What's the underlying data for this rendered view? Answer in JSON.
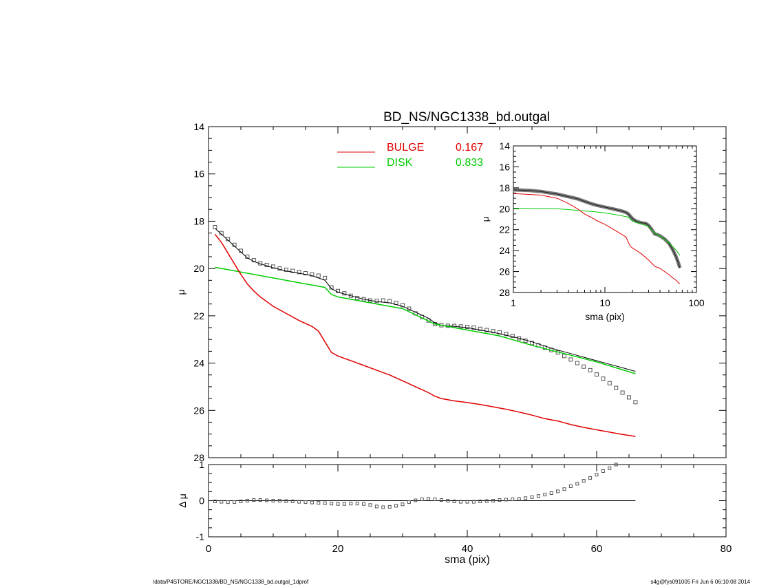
{
  "title": "BD_NS/NGC1338_bd.outgal",
  "footer_left": "/data/P4STORE/NGC1338/BD_NS/NGC1338_bd.outgal_1dprof",
  "footer_right": "s4g@fys091005  Fri Jun  6 06:10:08 2014",
  "colors": {
    "bulge": "#e00000",
    "disk": "#00cc00",
    "data": "#555555",
    "total": "#000000"
  },
  "chart_data": [
    {
      "id": "main",
      "type": "line",
      "title": "BD_NS/NGC1338_bd.outgal",
      "xlabel": "",
      "ylabel": "μ",
      "xlim": [
        0,
        80
      ],
      "ylim": [
        14,
        28
      ],
      "y_inverted": true,
      "y_ticks": [
        "14",
        "16",
        "18",
        "20",
        "22",
        "24",
        "26",
        "28"
      ],
      "legend": {
        "placement": "top-center",
        "entries": [
          {
            "name": "BULGE",
            "value": "0.167",
            "color": "#e00000"
          },
          {
            "name": "DISK",
            "value": "0.833",
            "color": "#00cc00"
          }
        ]
      },
      "series": [
        {
          "key": "data",
          "style": "squares",
          "x": [
            1,
            2,
            3,
            4,
            5,
            6,
            7,
            8,
            9,
            10,
            11,
            12,
            13,
            14,
            15,
            16,
            17,
            18,
            19,
            20,
            21,
            22,
            23,
            24,
            25,
            26,
            27,
            28,
            29,
            30,
            31,
            32,
            33,
            34,
            35,
            36,
            37,
            38,
            39,
            40,
            41,
            42,
            43,
            44,
            45,
            46,
            47,
            48,
            49,
            50,
            51,
            52,
            53,
            54,
            55,
            56,
            57,
            58,
            59,
            60,
            61,
            62,
            63,
            64,
            65,
            66
          ],
          "y": [
            18.25,
            18.5,
            18.75,
            19.0,
            19.25,
            19.5,
            19.65,
            19.78,
            19.85,
            19.92,
            20.0,
            20.05,
            20.1,
            20.15,
            20.2,
            20.25,
            20.3,
            20.4,
            20.8,
            20.95,
            21.05,
            21.15,
            21.25,
            21.3,
            21.35,
            21.37,
            21.35,
            21.38,
            21.45,
            21.55,
            21.7,
            21.9,
            22.05,
            22.2,
            22.35,
            22.4,
            22.42,
            22.43,
            22.45,
            22.47,
            22.5,
            22.55,
            22.6,
            22.65,
            22.7,
            22.77,
            22.85,
            22.95,
            23.05,
            23.15,
            23.25,
            23.35,
            23.45,
            23.55,
            23.7,
            23.85,
            24.0,
            24.15,
            24.3,
            24.48,
            24.66,
            24.85,
            25.05,
            25.25,
            25.45,
            25.65
          ]
        },
        {
          "key": "total",
          "color": "#000000",
          "x": [
            1,
            2,
            3,
            4,
            5,
            6,
            7,
            8,
            10,
            12,
            14,
            16,
            17,
            18,
            19,
            20,
            22,
            24,
            26,
            28,
            30,
            32,
            34,
            35,
            36,
            38,
            40,
            42,
            44,
            46,
            48,
            50,
            52,
            54,
            56,
            58,
            60,
            62,
            64,
            66
          ],
          "y": [
            18.3,
            18.55,
            18.8,
            19.05,
            19.3,
            19.55,
            19.7,
            19.8,
            19.97,
            20.1,
            20.2,
            20.3,
            20.4,
            20.5,
            20.85,
            21.0,
            21.15,
            21.3,
            21.4,
            21.45,
            21.6,
            21.85,
            22.1,
            22.3,
            22.4,
            22.45,
            22.5,
            22.6,
            22.7,
            22.82,
            22.95,
            23.1,
            23.28,
            23.45,
            23.6,
            23.75,
            23.9,
            24.05,
            24.2,
            24.35
          ]
        },
        {
          "key": "disk",
          "color": "#00cc00",
          "x": [
            1,
            5,
            10,
            15,
            18,
            19,
            20,
            25,
            30,
            35,
            40,
            45,
            50,
            55,
            60,
            66
          ],
          "y": [
            19.95,
            20.15,
            20.4,
            20.65,
            20.8,
            21.1,
            21.2,
            21.45,
            21.7,
            22.35,
            22.6,
            22.85,
            23.25,
            23.6,
            23.95,
            24.45
          ]
        },
        {
          "key": "bulge",
          "color": "#e00000",
          "x": [
            1,
            2,
            3,
            4,
            5,
            6,
            7,
            8,
            9,
            10,
            12,
            14,
            16,
            17,
            18,
            19,
            20,
            22,
            24,
            26,
            28,
            30,
            32,
            34,
            35,
            36,
            38,
            40,
            42,
            44,
            46,
            48,
            50,
            52,
            54,
            56,
            58,
            60,
            62,
            64,
            66
          ],
          "y": [
            18.55,
            18.9,
            19.35,
            19.8,
            20.25,
            20.65,
            20.95,
            21.2,
            21.4,
            21.6,
            21.9,
            22.2,
            22.45,
            22.65,
            23.1,
            23.55,
            23.7,
            23.9,
            24.1,
            24.3,
            24.5,
            24.75,
            25.0,
            25.25,
            25.4,
            25.5,
            25.6,
            25.67,
            25.75,
            25.85,
            25.95,
            26.07,
            26.2,
            26.35,
            26.45,
            26.6,
            26.72,
            26.82,
            26.92,
            27.02,
            27.1
          ]
        }
      ]
    },
    {
      "id": "residual",
      "type": "scatter",
      "xlabel": "sma (pix)",
      "ylabel": "Δ μ",
      "xlim": [
        0,
        80
      ],
      "ylim": [
        -1,
        1
      ],
      "x_ticks": [
        "0",
        "20",
        "40",
        "60",
        "80"
      ],
      "y_ticks": [
        "1",
        "0",
        "-1"
      ],
      "reference_line": 0,
      "series": [
        {
          "key": "residual",
          "x": [
            1,
            2,
            3,
            4,
            5,
            6,
            7,
            8,
            9,
            10,
            11,
            12,
            13,
            14,
            15,
            16,
            17,
            18,
            19,
            20,
            21,
            22,
            23,
            24,
            25,
            26,
            27,
            28,
            29,
            30,
            31,
            32,
            33,
            34,
            35,
            36,
            37,
            38,
            39,
            40,
            41,
            42,
            43,
            44,
            45,
            46,
            47,
            48,
            49,
            50,
            51,
            52,
            53,
            54,
            55,
            56,
            57,
            58,
            59,
            60,
            61,
            62,
            63
          ],
          "y": [
            -0.02,
            -0.03,
            -0.04,
            -0.04,
            -0.02,
            0.0,
            0.02,
            0.02,
            0.01,
            0.0,
            0.0,
            -0.01,
            -0.02,
            -0.03,
            -0.04,
            -0.05,
            -0.06,
            -0.07,
            -0.08,
            -0.09,
            -0.09,
            -0.08,
            -0.08,
            -0.09,
            -0.12,
            -0.16,
            -0.18,
            -0.17,
            -0.14,
            -0.1,
            -0.04,
            0.01,
            0.04,
            0.05,
            0.04,
            0.02,
            0.0,
            -0.02,
            -0.03,
            -0.03,
            -0.03,
            -0.02,
            -0.01,
            0.0,
            0.02,
            0.03,
            0.04,
            0.05,
            0.07,
            0.1,
            0.13,
            0.17,
            0.21,
            0.26,
            0.32,
            0.4,
            0.47,
            0.55,
            0.63,
            0.72,
            0.82,
            0.9,
            1.0
          ]
        }
      ]
    },
    {
      "id": "inset",
      "type": "line",
      "xlabel": "sma (pix)",
      "ylabel": "μ",
      "xscale": "log",
      "xlim": [
        1,
        100
      ],
      "ylim": [
        14,
        28
      ],
      "y_inverted": true,
      "x_ticks": [
        "1",
        "10",
        "100"
      ],
      "y_ticks": [
        "14",
        "16",
        "18",
        "20",
        "22",
        "24",
        "26",
        "28"
      ],
      "series": [
        {
          "key": "data",
          "x": [
            1,
            1.5,
            2,
            3,
            4,
            5,
            6,
            7,
            8,
            10,
            12,
            15,
            17,
            18,
            20,
            22,
            25,
            28,
            30,
            32,
            35,
            38,
            40,
            45,
            50,
            55,
            60,
            63,
            66
          ],
          "y": [
            18.2,
            18.25,
            18.35,
            18.6,
            18.85,
            19.05,
            19.3,
            19.5,
            19.65,
            19.85,
            20.0,
            20.2,
            20.35,
            20.5,
            20.95,
            21.2,
            21.35,
            21.4,
            21.6,
            21.9,
            22.4,
            22.5,
            22.6,
            22.9,
            23.3,
            23.9,
            24.6,
            25.1,
            25.65
          ]
        },
        {
          "key": "disk",
          "color": "#00cc00",
          "x": [
            1,
            3,
            5,
            8,
            10,
            15,
            18,
            20,
            25,
            30,
            35,
            40,
            50,
            60,
            66
          ],
          "y": [
            19.95,
            20.0,
            20.15,
            20.3,
            20.4,
            20.65,
            20.8,
            21.2,
            21.45,
            21.7,
            22.35,
            22.6,
            23.25,
            23.95,
            24.45
          ]
        },
        {
          "key": "bulge",
          "color": "#e00000",
          "x": [
            1,
            2,
            3,
            4,
            5,
            6,
            7,
            8,
            10,
            12,
            15,
            17,
            18,
            19,
            20,
            25,
            30,
            35,
            40,
            50,
            60,
            66
          ],
          "y": [
            18.55,
            18.7,
            19.0,
            19.5,
            20.0,
            20.5,
            20.8,
            21.1,
            21.5,
            21.9,
            22.4,
            22.7,
            23.2,
            23.6,
            23.75,
            24.3,
            24.9,
            25.5,
            25.7,
            26.3,
            26.85,
            27.2
          ]
        }
      ]
    }
  ]
}
